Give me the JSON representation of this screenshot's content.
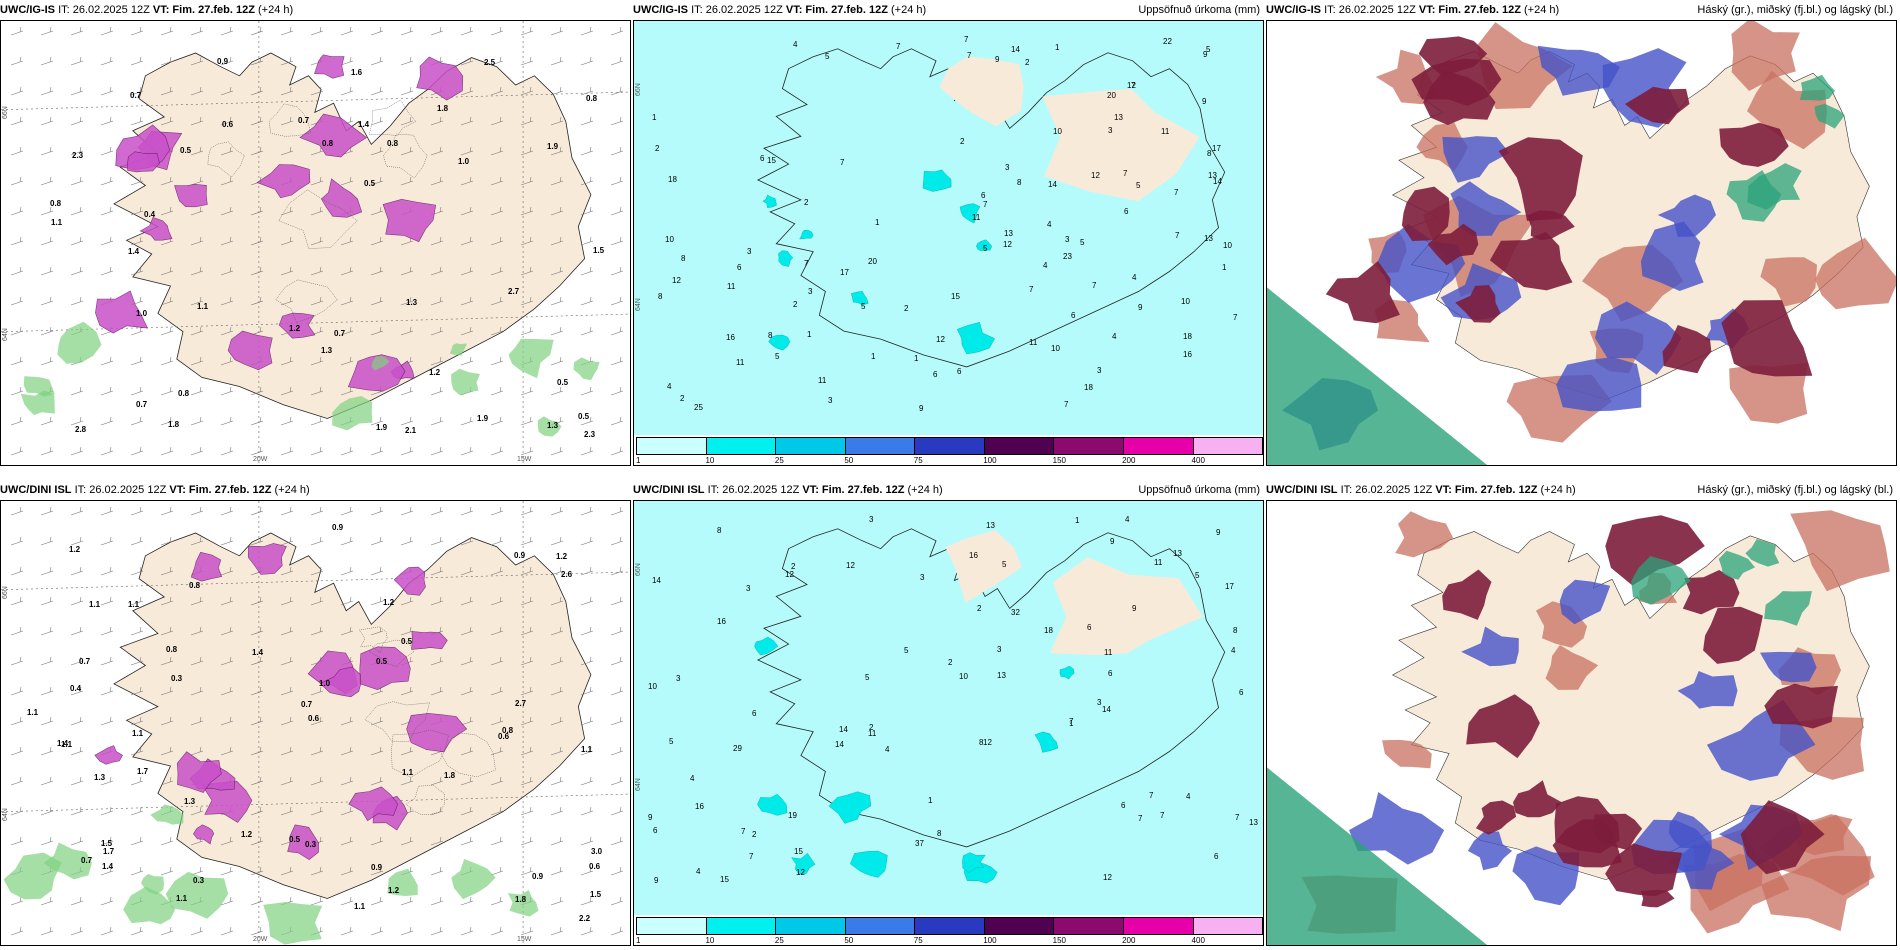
{
  "panels": [
    {
      "id": "p1",
      "model": "UWC/IG-IS",
      "it": "IT: 26.02.2025 12Z",
      "vt_label": "VT:",
      "vt": "Fim. 27.feb. 12Z",
      "lead": "(+24 h)",
      "right": "",
      "lat_labels": [
        "66N",
        "64N"
      ],
      "lon_labels": [
        "20W",
        "15W"
      ],
      "values": [
        "0.8",
        "0.9",
        "0.7",
        "0.5",
        "1.4",
        "0.7",
        "1.0",
        "0.5",
        "2.5",
        "2.8",
        "1.2",
        "1.9",
        "0.8",
        "1.8",
        "2.3",
        "1.4",
        "1.6",
        "0.4",
        "1.1",
        "1.5",
        "1.3",
        "1.9",
        "2.7",
        "2.1",
        "2.3",
        "1.2",
        "0.7",
        "0.5",
        "0.7",
        "0.8",
        "1.0",
        "0.6",
        "0.8",
        "1.3",
        "0.5",
        "1.9",
        "1.8",
        "1.1",
        "1.3",
        "0.8"
      ]
    },
    {
      "id": "p2",
      "model": "UWC/IG-IS",
      "it": "IT: 26.02.2025 12Z",
      "vt_label": "VT:",
      "vt": "Fim. 27.feb. 12Z",
      "lead": "(+24 h)",
      "right": "Uppsöfnuð úrkoma (mm)",
      "lat_labels": [
        "66N",
        "64N"
      ],
      "lon_labels": [],
      "values": [
        "15",
        "4",
        "2",
        "3",
        "2",
        "7",
        "8",
        "5",
        "9",
        "6",
        "2",
        "7",
        "5",
        "10",
        "4",
        "3",
        "4",
        "1",
        "14",
        "13",
        "16",
        "12",
        "7",
        "5",
        "7",
        "12",
        "2",
        "4",
        "2",
        "1",
        "7",
        "6",
        "7",
        "8",
        "22",
        "17",
        "12",
        "12",
        "10",
        "9",
        "20",
        "15",
        "17",
        "18",
        "13",
        "12",
        "11",
        "9",
        "10",
        "18",
        "10",
        "11",
        "11",
        "7",
        "13",
        "6",
        "7",
        "7",
        "13",
        "7",
        "10",
        "11",
        "8",
        "20",
        "23",
        "11",
        "14",
        "16",
        "14",
        "18",
        "25",
        "6",
        "8",
        "3",
        "3",
        "3",
        "3",
        "4",
        "3",
        "5",
        "5",
        "4",
        "7",
        "7",
        "6",
        "5",
        "9",
        "9",
        "7",
        "5",
        "6",
        "6",
        "11",
        "1",
        "1",
        "1",
        "1",
        "1",
        "2",
        "2",
        "7",
        "8"
      ],
      "scale": [
        "1",
        "10",
        "25",
        "50",
        "75",
        "100",
        "150",
        "200",
        "400"
      ]
    },
    {
      "id": "p3",
      "model": "UWC/IG-IS",
      "it": "IT: 26.02.2025 12Z",
      "vt_label": "VT:",
      "vt": "Fim. 27.feb. 12Z",
      "lead": "(+24 h)",
      "right": "Háský (gr.), miðský (fj.bl.) og lágský (bl.)",
      "lat_labels": [],
      "lon_labels": [],
      "values": []
    },
    {
      "id": "p4",
      "model": "UWC/DINI ISL",
      "it": "IT: 26.02.2025 12Z",
      "vt_label": "VT:",
      "vt": "Fim. 27.feb. 12Z",
      "lead": "(+24 h)",
      "right": "",
      "lat_labels": [
        "66N",
        "64N"
      ],
      "lon_labels": [
        "20W",
        "15W"
      ],
      "values": [
        "1.1",
        "0.4",
        "0.5",
        "1.7",
        "1.1",
        "0.3",
        "1.2",
        "2.6",
        "0.6",
        "1.3",
        "1.1",
        "0.5",
        "0.9",
        "1.2",
        "1.1",
        "0.9",
        "1.5",
        "1.8",
        "1.7",
        "2.7",
        "1.1",
        "3.0",
        "1.1",
        "2.2",
        "0.9",
        "0.3",
        "1.4",
        "1.1",
        "0.5",
        "0.6",
        "1.3",
        "1.0",
        "1.1",
        "1.4",
        "0.3",
        "1.5",
        "0.7",
        "0.8",
        "1.2",
        "0.6",
        "0.8",
        "0.7",
        "1.1",
        "0.8",
        "0.7",
        "1.2",
        "0.9",
        "1.8",
        "1.2",
        "1.4"
      ]
    },
    {
      "id": "p5",
      "model": "UWC/DINI ISL",
      "it": "IT: 26.02.2025 12Z",
      "vt_label": "VT:",
      "vt": "Fim. 27.feb. 12Z",
      "lead": "(+24 h)",
      "right": "Uppsöfnuð úrkoma (mm)",
      "lat_labels": [
        "66N",
        "64N"
      ],
      "lon_labels": [],
      "values": [
        "7",
        "8",
        "5",
        "4",
        "6",
        "1",
        "3",
        "6",
        "2",
        "5",
        "10",
        "12",
        "12",
        "4",
        "14",
        "3",
        "7",
        "3",
        "4",
        "6",
        "15",
        "16",
        "13",
        "17",
        "12",
        "15",
        "14",
        "8",
        "5",
        "32",
        "12",
        "12",
        "16",
        "13",
        "19",
        "9",
        "11",
        "18",
        "10",
        "11",
        "7",
        "16",
        "13",
        "29",
        "37",
        "14",
        "13",
        "14",
        "3",
        "2",
        "4",
        "4",
        "4",
        "5",
        "6",
        "9",
        "8",
        "7",
        "9",
        "9",
        "2",
        "1",
        "2",
        "2",
        "3",
        "1",
        "6",
        "7",
        "6",
        "7",
        "11",
        "7",
        "8",
        "9",
        "6",
        "3",
        "5"
      ],
      "scale": [
        "1",
        "10",
        "25",
        "50",
        "75",
        "100",
        "150",
        "200",
        "400"
      ]
    },
    {
      "id": "p6",
      "model": "UWC/DINI ISL",
      "it": "IT: 26.02.2025 12Z",
      "vt_label": "VT:",
      "vt": "Fim. 27.feb. 12Z",
      "lead": "(+24 h)",
      "right": "Háský (gr.), miðský (fj.bl.) og lágský (bl.)",
      "lat_labels": [],
      "lon_labels": [],
      "values": []
    }
  ],
  "colors": {
    "land": "#f8ead9",
    "sea_precip": "#b5fbfb",
    "cyan": "#00eaea",
    "cloud_dark": "#7d1d3c",
    "cloud_blue": "#4552c8",
    "cloud_red": "#c87060",
    "cloud_green": "#2aa37a",
    "precip_pink": "#c850c8",
    "precip_green": "#7fd17f",
    "scale": [
      "#ccffff",
      "#00f0f0",
      "#00c8e6",
      "#3a7be8",
      "#2a3ac0",
      "#500050",
      "#8b0a6e",
      "#e600aa",
      "#f7b0f0"
    ]
  }
}
